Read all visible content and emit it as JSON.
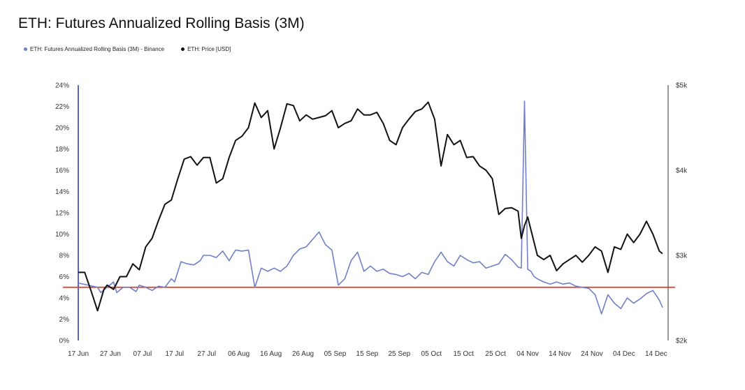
{
  "colors": {
    "basis": "#7080c8",
    "price": "#111111",
    "threshold": "#e23a2a",
    "axis": "#2233aa"
  },
  "chart_data": {
    "type": "line",
    "title": "ETH: Futures Annualized Rolling Basis (3M)",
    "legend_position": "top-left",
    "x_tick_labels": [
      "17 Jun",
      "27 Jun",
      "07 Jul",
      "17 Jul",
      "27 Jul",
      "06 Aug",
      "16 Aug",
      "26 Aug",
      "05 Sep",
      "15 Sep",
      "25 Sep",
      "05 Oct",
      "15 Oct",
      "25 Oct",
      "04 Nov",
      "14 Nov",
      "24 Nov",
      "04 Dec",
      "14 Dec"
    ],
    "x_range_days": [
      0,
      182
    ],
    "left_axis": {
      "ylim": [
        0,
        24
      ],
      "tick_labels": [
        "0%",
        "2%",
        "4%",
        "6%",
        "8%",
        "10%",
        "12%",
        "14%",
        "16%",
        "18%",
        "20%",
        "22%",
        "24%"
      ]
    },
    "right_axis": {
      "ylim": [
        2000,
        5000
      ],
      "ticks": [
        2000,
        3000,
        4000,
        5000
      ],
      "tick_labels": [
        "$2k",
        "$3k",
        "$4k",
        "$5k"
      ]
    },
    "threshold_line": {
      "value": 5,
      "axis": "left"
    },
    "series": [
      {
        "name": "ETH: Futures Annualized Rolling Basis (3M) - Binance",
        "axis": "left",
        "x": [
          0,
          3,
          6,
          7,
          9,
          11,
          12,
          14,
          16,
          18,
          19,
          21,
          23,
          25,
          27,
          29,
          30,
          32,
          34,
          36,
          38,
          39,
          41,
          43,
          45,
          47,
          49,
          51,
          53,
          55,
          57,
          59,
          61,
          63,
          65,
          67,
          69,
          71,
          73,
          75,
          77,
          79,
          81,
          83,
          85,
          87,
          89,
          91,
          93,
          95,
          97,
          99,
          101,
          103,
          105,
          107,
          109,
          111,
          113,
          115,
          117,
          119,
          121,
          123,
          125,
          127,
          129,
          131,
          133,
          135,
          137,
          138,
          139,
          140,
          141,
          142,
          143,
          145,
          147,
          149,
          151,
          153,
          155,
          157,
          159,
          161,
          163,
          165,
          167,
          169,
          171,
          173,
          175,
          177,
          179,
          181,
          182
        ],
        "y": [
          5.4,
          5.2,
          5.0,
          4.5,
          5.0,
          5.5,
          4.5,
          5.0,
          5.0,
          4.6,
          5.2,
          5.0,
          4.7,
          5.1,
          5.0,
          5.8,
          5.5,
          7.4,
          7.2,
          7.1,
          7.5,
          8.0,
          8.0,
          7.8,
          8.4,
          7.5,
          8.5,
          8.4,
          8.5,
          5.0,
          6.8,
          6.5,
          6.8,
          6.5,
          7.0,
          8.0,
          8.6,
          8.8,
          9.5,
          10.2,
          9.0,
          8.5,
          5.2,
          5.8,
          7.5,
          8.3,
          6.5,
          7.0,
          6.5,
          6.7,
          6.3,
          6.2,
          6.0,
          6.3,
          5.8,
          6.4,
          6.2,
          7.4,
          8.3,
          7.4,
          7.0,
          8.0,
          7.6,
          7.3,
          7.4,
          6.8,
          7.0,
          7.2,
          8.1,
          7.6,
          6.9,
          6.8,
          22.5,
          6.7,
          6.5,
          6.0,
          5.8,
          5.5,
          5.3,
          5.5,
          5.3,
          5.4,
          5.1,
          5.0,
          4.9,
          4.3,
          2.5,
          4.3,
          3.5,
          3.0,
          4.0,
          3.5,
          3.9,
          4.4,
          4.7,
          3.8,
          3.1
        ]
      },
      {
        "name": "ETH: Price [USD]",
        "axis": "right",
        "x": [
          0,
          2,
          4,
          6,
          8,
          9,
          11,
          13,
          15,
          17,
          19,
          21,
          23,
          25,
          27,
          29,
          31,
          33,
          35,
          37,
          39,
          41,
          43,
          45,
          47,
          49,
          51,
          53,
          55,
          57,
          59,
          61,
          63,
          65,
          67,
          69,
          71,
          73,
          75,
          77,
          79,
          81,
          83,
          85,
          87,
          89,
          91,
          93,
          95,
          97,
          99,
          101,
          103,
          105,
          107,
          109,
          111,
          113,
          115,
          117,
          119,
          121,
          123,
          125,
          127,
          129,
          131,
          133,
          135,
          137,
          138,
          139,
          140,
          141,
          143,
          145,
          147,
          149,
          151,
          153,
          155,
          157,
          159,
          161,
          163,
          165,
          167,
          169,
          171,
          173,
          175,
          177,
          179,
          181,
          182
        ],
        "y": [
          2800,
          2800,
          2580,
          2350,
          2600,
          2650,
          2600,
          2750,
          2750,
          2900,
          2830,
          3100,
          3200,
          3410,
          3600,
          3650,
          3900,
          4130,
          4160,
          4060,
          4150,
          4150,
          3850,
          3900,
          4150,
          4350,
          4400,
          4500,
          4790,
          4620,
          4700,
          4250,
          4500,
          4780,
          4760,
          4580,
          4650,
          4600,
          4620,
          4640,
          4700,
          4500,
          4550,
          4580,
          4720,
          4650,
          4650,
          4680,
          4550,
          4350,
          4300,
          4500,
          4600,
          4690,
          4720,
          4800,
          4600,
          4050,
          4420,
          4300,
          4350,
          4150,
          4160,
          4050,
          4000,
          3900,
          3480,
          3550,
          3560,
          3520,
          3200,
          3350,
          3450,
          3300,
          3000,
          2950,
          3000,
          2820,
          2900,
          2950,
          3000,
          2920,
          3000,
          3100,
          3050,
          2800,
          3100,
          3070,
          3250,
          3150,
          3250,
          3400,
          3250,
          3050,
          3020
        ]
      }
    ]
  }
}
